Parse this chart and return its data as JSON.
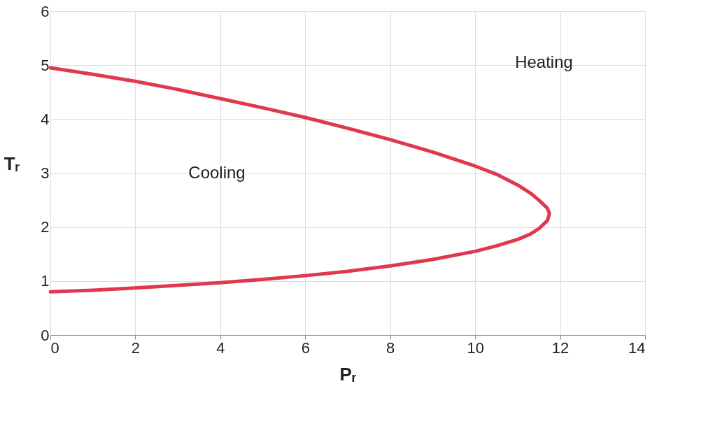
{
  "chart_data": {
    "type": "line",
    "xlabel": "Pᵣ",
    "ylabel": "Tᵣ",
    "series": [
      {
        "color": "#e0384f",
        "x": [
          0,
          1,
          2,
          3,
          4,
          5,
          6,
          7,
          8,
          9,
          10,
          10.5,
          11,
          11.3,
          11.5,
          11.7,
          11.75,
          11.7,
          11.5,
          11.3,
          11,
          10.5,
          10,
          9,
          8,
          7,
          6,
          5,
          4,
          3,
          2,
          1,
          0
        ],
        "values": [
          4.95,
          4.83,
          4.7,
          4.55,
          4.38,
          4.21,
          4.03,
          3.83,
          3.62,
          3.39,
          3.13,
          2.98,
          2.78,
          2.63,
          2.5,
          2.35,
          2.25,
          2.12,
          1.97,
          1.87,
          1.77,
          1.65,
          1.55,
          1.4,
          1.28,
          1.18,
          1.1,
          1.03,
          0.97,
          0.92,
          0.87,
          0.83,
          0.8
        ]
      }
    ],
    "xlim": [
      0,
      14
    ],
    "xticks": [
      0,
      2,
      4,
      6,
      8,
      10,
      12,
      14
    ],
    "ylim": [
      0,
      6
    ],
    "yticks": [
      0,
      1,
      2,
      3,
      4,
      5,
      6
    ],
    "grid": true,
    "legend": false,
    "marker": "none",
    "line_style": "solid",
    "annotations": [
      "Heating",
      "Cooling"
    ]
  }
}
